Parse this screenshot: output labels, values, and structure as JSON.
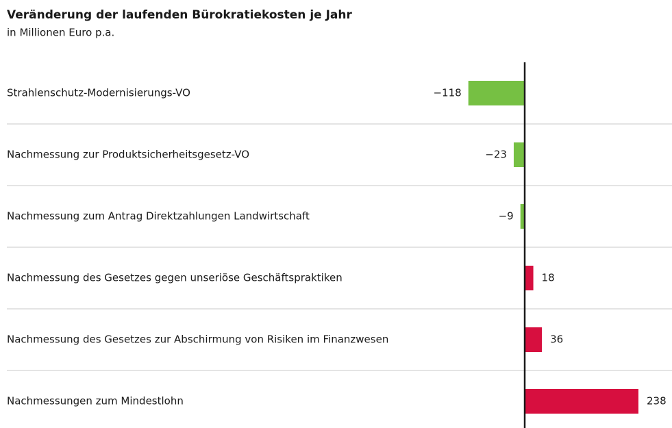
{
  "chart_data": {
    "type": "bar",
    "orientation": "horizontal",
    "title": "Veränderung der laufenden Bürokratiekosten je Jahr",
    "subtitle": "in Millionen Euro p.a.",
    "categories": [
      "Strahlenschutz-Modernisierungs-VO",
      "Nachmessung zur Produktsicherheitsgesetz-VO",
      "Nachmessung zum Antrag Direktzahlungen Landwirtschaft",
      "Nachmessung des Gesetzes gegen unseriöse Geschäftspraktiken",
      "Nachmessung des Gesetzes zur Abschirmung von Risiken im Finanzwesen",
      "Nachmessungen zum Mindestlohn"
    ],
    "values": [
      -118,
      -23,
      -9,
      18,
      36,
      238
    ],
    "value_labels": [
      "−118",
      "−23",
      "−9",
      "18",
      "36",
      "238"
    ],
    "negative_color": "#76c043",
    "positive_color": "#d70f3f"
  }
}
